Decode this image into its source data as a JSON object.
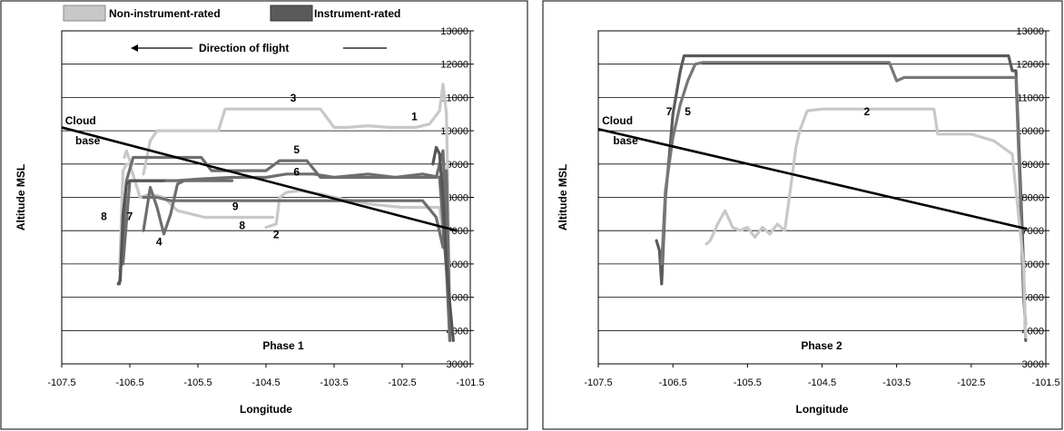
{
  "legend": [
    {
      "label": "Non-instrument-rated",
      "color": "#c8c8c8"
    },
    {
      "label": "Instrument-rated",
      "color": "#5a5a5a"
    }
  ],
  "direction_text": "Direction of flight",
  "cloud_label_1": "Cloud",
  "cloud_label_2": "base",
  "chart_data": [
    {
      "type": "line",
      "phase_label": "Phase 1",
      "xlabel": "Longitude",
      "ylabel": "Altitude MSL",
      "xlim": [
        -107.5,
        -101.5
      ],
      "ylim": [
        3000,
        13000
      ],
      "xticks": [
        -107.5,
        -106.5,
        -105.5,
        -104.5,
        -103.5,
        -102.5,
        -101.5
      ],
      "yticks": [
        3000,
        4000,
        5000,
        6000,
        7000,
        8000,
        9000,
        10000,
        11000,
        12000,
        13000
      ],
      "grid": "horizontal",
      "cloud_base": {
        "x": [
          -107.5,
          -101.7
        ],
        "y": [
          10100,
          7000
        ]
      },
      "series": [
        {
          "label": "3",
          "group": "Non-instrument-rated",
          "color": "#c8c8c8",
          "label_x": -104.1,
          "label_y": 10870,
          "x": [
            -106.3,
            -106.2,
            -106.1,
            -105.9,
            -105.6,
            -105.5,
            -105.4,
            -105.2,
            -105.1,
            -104.9,
            -104.7,
            -104.5,
            -104.2,
            -104.0,
            -103.7,
            -103.5,
            -103.3,
            -103.0,
            -102.7,
            -102.5,
            -102.3,
            -102.1,
            -101.95,
            -101.9,
            -101.85,
            -101.8
          ],
          "y": [
            8700,
            9700,
            10000,
            10000,
            10000,
            10000,
            10000,
            10000,
            10650,
            10650,
            10650,
            10650,
            10650,
            10650,
            10650,
            10100,
            10100,
            10150,
            10100,
            10100,
            10100,
            10200,
            10600,
            11400,
            10500,
            4500
          ]
        },
        {
          "label": "2",
          "group": "Non-instrument-rated",
          "color": "#c8c8c8",
          "label_x": -104.35,
          "label_y": 6780,
          "x": [
            -104.5,
            -104.35,
            -104.3,
            -104.2,
            -104.0,
            -103.7,
            -103.5,
            -103.0,
            -102.5,
            -102.2,
            -101.95,
            -101.85,
            -101.8
          ],
          "y": [
            7100,
            7200,
            8000,
            8150,
            8200,
            8100,
            8000,
            7800,
            7700,
            7700,
            7700,
            6000,
            4300
          ]
        },
        {
          "label": "8",
          "group": "Non-instrument-rated",
          "color": "#c8c8c8",
          "label_x": -104.85,
          "label_y": 7050,
          "x": [
            -106.65,
            -106.6,
            -106.55,
            -106.5,
            -106.35,
            -106.2,
            -106.0,
            -105.8,
            -105.6,
            -105.4,
            -105.2,
            -105.0,
            -104.8,
            -104.6,
            -104.4
          ],
          "y": [
            5800,
            8800,
            9000,
            9000,
            8000,
            8100,
            8000,
            7600,
            7500,
            7400,
            7400,
            7400,
            7400,
            7400,
            7400
          ]
        },
        {
          "label": "",
          "group": "Non-instrument-rated",
          "color": "#c8c8c8",
          "label_x": -104.0,
          "label_y": 3500,
          "x": [
            -106.58,
            -106.55,
            -106.5,
            -106.45
          ],
          "y": [
            9200,
            9400,
            9100,
            9000
          ]
        },
        {
          "label": "5",
          "group": "Instrument-rated",
          "color": "#6e6e6e",
          "label_x": -104.05,
          "label_y": 9320,
          "x": [
            -106.65,
            -106.55,
            -106.45,
            -106.2,
            -106.0,
            -105.8,
            -105.6,
            -105.45,
            -105.3,
            -105.0,
            -104.7,
            -104.5,
            -104.3,
            -104.1,
            -103.9,
            -103.7,
            -103.4,
            -103.0,
            -102.6,
            -102.3,
            -102.0,
            -101.9,
            -101.85,
            -101.8
          ],
          "y": [
            5400,
            8500,
            9200,
            9200,
            9200,
            9200,
            9200,
            9200,
            8800,
            8800,
            8800,
            8800,
            9100,
            9100,
            9100,
            8600,
            8600,
            8600,
            8600,
            8600,
            8600,
            9400,
            7000,
            3700
          ]
        },
        {
          "label": "6",
          "group": "Instrument-rated",
          "color": "#6e6e6e",
          "label_x": -104.05,
          "label_y": 8650,
          "x": [
            -106.6,
            -106.5,
            -106.2,
            -105.8,
            -105.5,
            -105.0,
            -104.5,
            -104.2,
            -103.8,
            -103.5,
            -103.0,
            -102.6,
            -102.2,
            -101.95,
            -101.85,
            -101.8
          ],
          "y": [
            6000,
            8500,
            8500,
            8500,
            8550,
            8600,
            8600,
            8700,
            8700,
            8600,
            8700,
            8600,
            8700,
            8600,
            5800,
            3700
          ]
        },
        {
          "label": "9",
          "group": "Instrument-rated",
          "color": "#6e6e6e",
          "label_x": -104.95,
          "label_y": 7620,
          "x": [
            -106.3,
            -106.1,
            -105.9,
            -105.7,
            -105.5,
            -105.3,
            -105.0,
            -104.5,
            -104.0,
            -103.5,
            -103.0,
            -102.5,
            -102.2,
            -102.0,
            -101.9,
            -101.85,
            -101.8
          ],
          "y": [
            8000,
            8000,
            7900,
            7900,
            7900,
            7900,
            7900,
            7900,
            7900,
            7900,
            7900,
            7900,
            7900,
            7400,
            6500,
            8800,
            4000
          ]
        },
        {
          "label": "4",
          "group": "Instrument-rated",
          "color": "#6e6e6e",
          "label_x": -106.07,
          "label_y": 6550,
          "x": [
            -106.3,
            -106.2,
            -106.1,
            -106.0,
            -105.9,
            -105.8,
            -105.7,
            -105.6,
            -105.4,
            -105.2,
            -105.0
          ],
          "y": [
            7000,
            8300,
            7700,
            6900,
            7500,
            8400,
            8500,
            8500,
            8500,
            8500,
            8500
          ]
        },
        {
          "label": "7",
          "group": "Instrument-rated",
          "color": "#555555",
          "label_x": -106.5,
          "label_y": 7320,
          "x": [
            -106.67,
            -106.64,
            -106.6,
            -106.55,
            -106.5,
            -106.4,
            -106.2,
            -106.0
          ],
          "y": [
            5400,
            5500,
            7500,
            8400,
            8500,
            8500,
            8500,
            8500
          ]
        },
        {
          "label": "",
          "group": "Instrument-rated",
          "color": "#555555",
          "label_x": -104.0,
          "label_y": 3500,
          "x": [
            -102.05,
            -102.0,
            -101.95,
            -101.9,
            -101.85,
            -101.8,
            -101.75
          ],
          "y": [
            9000,
            9500,
            9300,
            8000,
            6000,
            4800,
            3700
          ]
        }
      ],
      "extra_labels": [
        {
          "text": "8",
          "x": -106.88,
          "y": 7320
        },
        {
          "text": "1",
          "x": -102.32,
          "y": 10320
        }
      ]
    },
    {
      "type": "line",
      "phase_label": "Phase 2",
      "xlabel": "Longitude",
      "ylabel": "Altitude MSL",
      "xlim": [
        -107.5,
        -101.5
      ],
      "ylim": [
        3000,
        13000
      ],
      "xticks": [
        -107.5,
        -106.5,
        -105.5,
        -104.5,
        -103.5,
        -102.5,
        -101.5
      ],
      "yticks": [
        3000,
        4000,
        5000,
        6000,
        7000,
        8000,
        9000,
        10000,
        11000,
        12000,
        13000
      ],
      "grid": "horizontal",
      "cloud_base": {
        "x": [
          -107.5,
          -101.75
        ],
        "y": [
          10050,
          7050
        ]
      },
      "series": [
        {
          "label": "7",
          "group": "Instrument-rated",
          "color": "#5a5a5a",
          "label_x": -106.55,
          "label_y": 10470,
          "x": [
            -106.72,
            -106.68,
            -106.65,
            -106.6,
            -106.55,
            -106.5,
            -106.4,
            -106.35,
            -106.3,
            -106.0,
            -105.0,
            -104.0,
            -103.0,
            -102.3,
            -102.0,
            -101.95,
            -101.9,
            -101.85,
            -101.8,
            -101.77
          ],
          "y": [
            6700,
            6400,
            5400,
            8000,
            9200,
            10500,
            11800,
            12250,
            12250,
            12250,
            12250,
            12250,
            12250,
            12250,
            12250,
            11800,
            11800,
            9000,
            6000,
            3700
          ]
        },
        {
          "label": "5",
          "group": "Instrument-rated",
          "color": "#777777",
          "label_x": -106.3,
          "label_y": 10470,
          "x": [
            -106.65,
            -106.6,
            -106.5,
            -106.4,
            -106.3,
            -106.2,
            -106.1,
            -105.5,
            -104.5,
            -104.0,
            -103.6,
            -103.5,
            -103.4,
            -102.8,
            -102.3,
            -102.0,
            -101.9,
            -101.85,
            -101.8,
            -101.77
          ],
          "y": [
            6000,
            8200,
            9800,
            10800,
            11500,
            12000,
            12050,
            12050,
            12050,
            12050,
            12050,
            11500,
            11600,
            11600,
            11600,
            11600,
            11600,
            8500,
            5000,
            4200
          ]
        },
        {
          "label": "2",
          "group": "Non-instrument-rated",
          "color": "#c8c8c8",
          "label_x": -103.9,
          "label_y": 10470,
          "x": [
            -106.05,
            -106.0,
            -105.9,
            -105.8,
            -105.7,
            -105.6,
            -105.5,
            -105.4,
            -105.3,
            -105.2,
            -105.1,
            -105.0,
            -104.95,
            -104.85,
            -104.8,
            -104.7,
            -104.5,
            -104.0,
            -103.5,
            -103.0,
            -102.95,
            -102.5,
            -102.2,
            -101.95,
            -101.8,
            -101.77
          ],
          "y": [
            6600,
            6700,
            7200,
            7600,
            7100,
            7000,
            7100,
            6800,
            7100,
            6900,
            7200,
            7000,
            7800,
            9500,
            10000,
            10600,
            10650,
            10650,
            10650,
            10650,
            9900,
            9900,
            9700,
            9300,
            6000,
            3800
          ]
        }
      ],
      "extra_labels": []
    }
  ]
}
